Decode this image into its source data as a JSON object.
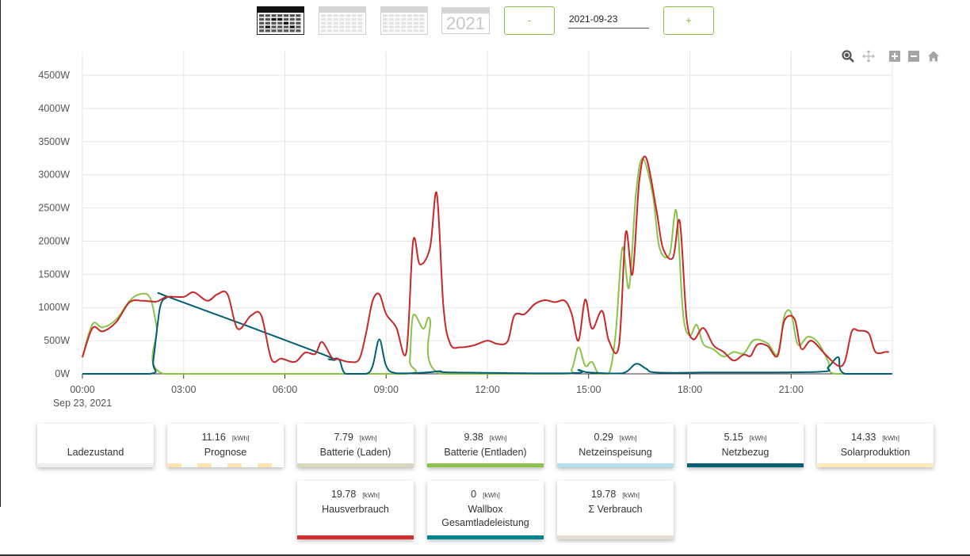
{
  "toolbar": {
    "year_label": "2021",
    "minus_label": "-",
    "plus_label": "+",
    "date_value": "2021-09-23"
  },
  "chart_tools": [
    "zoom-icon",
    "pan-icon",
    "zoom-in-icon",
    "zoom-out-icon",
    "reset-home-icon"
  ],
  "chart_data": {
    "type": "line",
    "y_ticks": [
      "0W",
      "500W",
      "1000W",
      "1500W",
      "2000W",
      "2500W",
      "3000W",
      "3500W",
      "4000W",
      "4500W"
    ],
    "x_ticks": [
      "00:00",
      "03:00",
      "06:00",
      "09:00",
      "12:00",
      "15:00",
      "18:00",
      "21:00"
    ],
    "x_date_label": "Sep 23, 2021",
    "ylim": [
      0,
      4500
    ],
    "xlim": [
      0,
      24
    ],
    "grid": true,
    "series": [
      {
        "color": "#8bc34a",
        "points": [
          [
            0,
            250
          ],
          [
            0.3,
            750
          ],
          [
            0.6,
            700
          ],
          [
            1.0,
            820
          ],
          [
            1.4,
            1100
          ],
          [
            1.7,
            1200
          ],
          [
            2.0,
            1150
          ],
          [
            2.2,
            700
          ],
          [
            2.4,
            0
          ],
          [
            6.0,
            0
          ],
          [
            9.6,
            0
          ],
          [
            9.7,
            200
          ],
          [
            9.8,
            880
          ],
          [
            10.1,
            680
          ],
          [
            10.3,
            820
          ],
          [
            10.6,
            0
          ],
          [
            14.2,
            0
          ],
          [
            14.5,
            70
          ],
          [
            14.7,
            400
          ],
          [
            14.9,
            120
          ],
          [
            15.1,
            180
          ],
          [
            15.3,
            0
          ],
          [
            15.6,
            0
          ],
          [
            15.8,
            600
          ],
          [
            16.0,
            1900
          ],
          [
            16.2,
            1300
          ],
          [
            16.4,
            2700
          ],
          [
            16.6,
            3250
          ],
          [
            16.9,
            2700
          ],
          [
            17.1,
            1900
          ],
          [
            17.4,
            1800
          ],
          [
            17.6,
            2450
          ],
          [
            17.8,
            900
          ],
          [
            18.0,
            580
          ],
          [
            18.2,
            740
          ],
          [
            18.4,
            450
          ],
          [
            18.7,
            370
          ],
          [
            19.0,
            260
          ],
          [
            19.3,
            330
          ],
          [
            19.6,
            310
          ],
          [
            19.9,
            510
          ],
          [
            20.3,
            460
          ],
          [
            20.6,
            300
          ],
          [
            20.8,
            870
          ],
          [
            21.0,
            920
          ],
          [
            21.2,
            440
          ],
          [
            21.5,
            560
          ],
          [
            21.8,
            470
          ],
          [
            22.1,
            190
          ],
          [
            22.3,
            0
          ],
          [
            24,
            0
          ]
        ]
      },
      {
        "color": "#005f73",
        "points": [
          [
            0,
            0
          ],
          [
            2.0,
            0
          ],
          [
            2.1,
            200
          ],
          [
            2.3,
            1000
          ],
          [
            2.5,
            1150
          ],
          [
            2.6,
            1150
          ],
          [
            7.1,
            300
          ],
          [
            7.3,
            220
          ],
          [
            7.6,
            220
          ],
          [
            7.8,
            0
          ],
          [
            8.4,
            0
          ],
          [
            8.6,
            120
          ],
          [
            8.8,
            520
          ],
          [
            9.0,
            120
          ],
          [
            9.3,
            10
          ],
          [
            10.2,
            20
          ],
          [
            10.6,
            40
          ],
          [
            11.0,
            20
          ],
          [
            14.5,
            10
          ],
          [
            14.7,
            60
          ],
          [
            15.0,
            20
          ],
          [
            16.0,
            10
          ],
          [
            16.4,
            150
          ],
          [
            16.7,
            80
          ],
          [
            17.0,
            20
          ],
          [
            18.5,
            20
          ],
          [
            21.8,
            30
          ],
          [
            22.1,
            100
          ],
          [
            22.4,
            250
          ],
          [
            22.6,
            0
          ],
          [
            24,
            0
          ]
        ]
      },
      {
        "color": "#c62828",
        "points": [
          [
            0,
            250
          ],
          [
            0.3,
            690
          ],
          [
            0.6,
            640
          ],
          [
            1.0,
            780
          ],
          [
            1.4,
            1080
          ],
          [
            1.8,
            1100
          ],
          [
            2.2,
            1090
          ],
          [
            2.5,
            1160
          ],
          [
            3.0,
            1160
          ],
          [
            3.3,
            1230
          ],
          [
            3.7,
            1100
          ],
          [
            4.0,
            1200
          ],
          [
            4.3,
            1200
          ],
          [
            4.6,
            680
          ],
          [
            5.0,
            880
          ],
          [
            5.3,
            880
          ],
          [
            5.6,
            220
          ],
          [
            5.9,
            230
          ],
          [
            6.3,
            180
          ],
          [
            6.6,
            320
          ],
          [
            6.9,
            300
          ],
          [
            7.1,
            480
          ],
          [
            7.4,
            240
          ],
          [
            7.6,
            220
          ],
          [
            7.9,
            180
          ],
          [
            8.2,
            220
          ],
          [
            8.4,
            600
          ],
          [
            8.6,
            1100
          ],
          [
            8.8,
            1200
          ],
          [
            9.0,
            900
          ],
          [
            9.3,
            700
          ],
          [
            9.6,
            330
          ],
          [
            9.8,
            2000
          ],
          [
            10.0,
            1650
          ],
          [
            10.3,
            1900
          ],
          [
            10.5,
            2720
          ],
          [
            10.7,
            1000
          ],
          [
            10.9,
            450
          ],
          [
            11.2,
            400
          ],
          [
            11.6,
            430
          ],
          [
            12.0,
            500
          ],
          [
            12.3,
            450
          ],
          [
            12.6,
            490
          ],
          [
            12.8,
            880
          ],
          [
            13.1,
            900
          ],
          [
            13.4,
            1050
          ],
          [
            13.7,
            1110
          ],
          [
            14.0,
            1080
          ],
          [
            14.3,
            1100
          ],
          [
            14.5,
            900
          ],
          [
            14.7,
            500
          ],
          [
            14.9,
            1120
          ],
          [
            15.1,
            680
          ],
          [
            15.4,
            950
          ],
          [
            15.6,
            500
          ],
          [
            15.9,
            430
          ],
          [
            16.1,
            2130
          ],
          [
            16.3,
            1500
          ],
          [
            16.5,
            2900
          ],
          [
            16.7,
            3260
          ],
          [
            17.0,
            2500
          ],
          [
            17.2,
            1900
          ],
          [
            17.5,
            1750
          ],
          [
            17.7,
            2300
          ],
          [
            17.9,
            850
          ],
          [
            18.1,
            520
          ],
          [
            18.4,
            690
          ],
          [
            18.7,
            430
          ],
          [
            19.0,
            330
          ],
          [
            19.3,
            200
          ],
          [
            19.6,
            290
          ],
          [
            19.8,
            270
          ],
          [
            20.0,
            440
          ],
          [
            20.3,
            420
          ],
          [
            20.6,
            270
          ],
          [
            20.8,
            800
          ],
          [
            21.1,
            830
          ],
          [
            21.3,
            380
          ],
          [
            21.6,
            500
          ],
          [
            22.0,
            300
          ],
          [
            22.4,
            120
          ],
          [
            22.6,
            200
          ],
          [
            22.8,
            640
          ],
          [
            23.0,
            650
          ],
          [
            23.3,
            610
          ],
          [
            23.5,
            330
          ],
          [
            23.8,
            330
          ],
          [
            23.9,
            330
          ]
        ]
      }
    ]
  },
  "cards": [
    {
      "value": "",
      "unit": "",
      "label": "Ladezustand",
      "color": "#efefef"
    },
    {
      "value": "11.16",
      "unit": "[kWh]",
      "label": "Prognose",
      "color": "#ffe5b4",
      "dashed": true
    },
    {
      "value": "7.79",
      "unit": "[kWh]",
      "label": "Batterie (Laden)",
      "color": "#d9d8be"
    },
    {
      "value": "9.38",
      "unit": "[kWh]",
      "label": "Batterie (Entladen)",
      "color": "#8bc34a"
    },
    {
      "value": "0.29",
      "unit": "[kWh]",
      "label": "Netzeinspeisung",
      "color": "#b3e0ee"
    },
    {
      "value": "5.15",
      "unit": "[kWh]",
      "label": "Netzbezug",
      "color": "#005f73"
    },
    {
      "value": "14.33",
      "unit": "[kWh]",
      "label": "Solarproduktion",
      "color": "#ffebb8"
    },
    {
      "value": "19.78",
      "unit": "[kWh]",
      "label": "Hausverbrauch",
      "color": "#d32f2f"
    },
    {
      "value": "0",
      "unit": "[kWh]",
      "label": "Wallbox\nGesamtladeleistung",
      "color": "#00838f"
    },
    {
      "value": "19.78",
      "unit": "[kWh]",
      "label": "Σ Verbrauch",
      "color": "#e6dcd2"
    }
  ]
}
